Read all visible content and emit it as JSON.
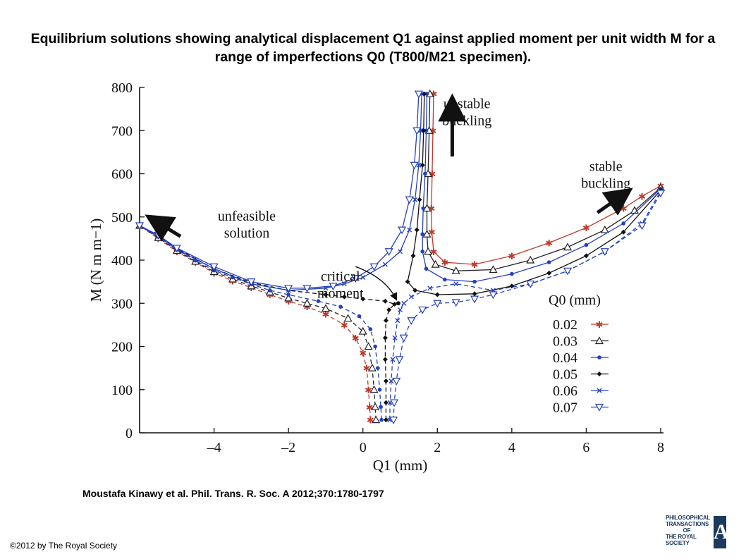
{
  "title": "Equilibrium solutions showing analytical displacement Q1 against applied moment per unit width M for a range of imperfections Q0 (T800/M21 specimen).",
  "citation": "Moustafa Kinawy et al. Phil. Trans. R. Soc. A 2012;370:1780-1797",
  "copyright": "©2012 by The Royal Society",
  "logo": {
    "line1": "PHILOSOPHICAL",
    "line2": "TRANSACTIONS",
    "line3": "OF",
    "line4": "THE ROYAL",
    "line5": "SOCIETY",
    "letter": "A"
  },
  "chart_data": {
    "type": "line",
    "title": "",
    "xlabel": "Q1 (mm)",
    "ylabel": "M (N m m−1)",
    "xlim": [
      -6,
      8
    ],
    "ylim": [
      0,
      800
    ],
    "x_ticks": [
      -4,
      -2,
      0,
      2,
      4,
      6,
      8
    ],
    "y_ticks": [
      0,
      100,
      200,
      300,
      400,
      500,
      600,
      700,
      800
    ],
    "x_tick_labels": [
      "–4",
      "–2",
      "0",
      "2",
      "4",
      "6",
      "8"
    ],
    "y_tick_labels": [
      "0",
      "100",
      "200",
      "300",
      "400",
      "500",
      "600",
      "700",
      "800"
    ],
    "grid": false,
    "legend": {
      "title": "Q0 (mm)",
      "placement": "bottom-right",
      "entries": [
        "0.02",
        "0.03",
        "0.04",
        "0.05",
        "0.06",
        "0.07"
      ]
    },
    "annotations": [
      {
        "text": "unstable buckling",
        "at": [
          2.7,
          755
        ]
      },
      {
        "text": "stable buckling",
        "at": [
          6.3,
          610
        ]
      },
      {
        "text": "unfeasible solution",
        "at": [
          -3.5,
          485
        ]
      },
      {
        "text": "critical moment",
        "at": [
          -0.7,
          345
        ]
      }
    ],
    "critical_moment_point": [
      0.95,
      300
    ],
    "series": [
      {
        "name": "0.02",
        "color": "#c0392b",
        "marker": "star",
        "unstable_branch": [
          [
            0.2,
            30
          ],
          [
            0.18,
            60
          ],
          [
            0.15,
            100
          ],
          [
            0.1,
            150
          ],
          [
            0.0,
            185
          ],
          [
            -0.2,
            220
          ],
          [
            -0.5,
            250
          ],
          [
            -1.0,
            275
          ],
          [
            -1.5,
            292
          ],
          [
            -2.0,
            305
          ],
          [
            -2.5,
            320
          ],
          [
            -3.0,
            336
          ],
          [
            -3.5,
            352
          ],
          [
            -4.0,
            370
          ],
          [
            -4.5,
            395
          ],
          [
            -5.0,
            420
          ],
          [
            -5.5,
            450
          ],
          [
            -6.0,
            480
          ]
        ],
        "upper_branch": [
          [
            1.9,
            785
          ],
          [
            1.88,
            700
          ],
          [
            1.86,
            600
          ],
          [
            1.84,
            520
          ],
          [
            1.85,
            465
          ],
          [
            1.9,
            420
          ],
          [
            2.2,
            395
          ],
          [
            3.0,
            390
          ],
          [
            4.0,
            410
          ],
          [
            5.0,
            440
          ],
          [
            6.0,
            475
          ],
          [
            7.0,
            520
          ],
          [
            7.5,
            548
          ],
          [
            8.0,
            572
          ]
        ]
      },
      {
        "name": "0.03",
        "color": "#222222",
        "marker": "triangle",
        "unstable_branch": [
          [
            0.35,
            30
          ],
          [
            0.33,
            60
          ],
          [
            0.3,
            100
          ],
          [
            0.25,
            150
          ],
          [
            0.15,
            200
          ],
          [
            0.0,
            235
          ],
          [
            -0.4,
            265
          ],
          [
            -1.0,
            288
          ],
          [
            -1.5,
            300
          ],
          [
            -2.0,
            312
          ],
          [
            -2.5,
            326
          ],
          [
            -3.0,
            340
          ],
          [
            -3.5,
            356
          ],
          [
            -4.0,
            373
          ],
          [
            -4.5,
            397
          ],
          [
            -5.0,
            422
          ],
          [
            -5.5,
            452
          ],
          [
            -6.0,
            480
          ]
        ],
        "upper_branch": [
          [
            1.8,
            785
          ],
          [
            1.78,
            700
          ],
          [
            1.75,
            600
          ],
          [
            1.72,
            520
          ],
          [
            1.72,
            460
          ],
          [
            1.75,
            420
          ],
          [
            1.95,
            390
          ],
          [
            2.5,
            375
          ],
          [
            3.5,
            378
          ],
          [
            4.5,
            400
          ],
          [
            5.5,
            430
          ],
          [
            6.5,
            470
          ],
          [
            7.3,
            515
          ],
          [
            8.0,
            568
          ]
        ]
      },
      {
        "name": "0.04",
        "color": "#2340c0",
        "marker": "dot",
        "unstable_branch": [
          [
            0.5,
            30
          ],
          [
            0.48,
            60
          ],
          [
            0.45,
            100
          ],
          [
            0.4,
            150
          ],
          [
            0.33,
            200
          ],
          [
            0.2,
            240
          ],
          [
            -0.1,
            270
          ],
          [
            -0.6,
            292
          ],
          [
            -1.2,
            305
          ],
          [
            -2.0,
            320
          ],
          [
            -2.5,
            330
          ],
          [
            -3.0,
            344
          ],
          [
            -3.5,
            360
          ],
          [
            -4.0,
            376
          ],
          [
            -4.5,
            399
          ],
          [
            -5.0,
            424
          ],
          [
            -5.5,
            454
          ],
          [
            -6.0,
            480
          ]
        ],
        "upper_branch": [
          [
            1.72,
            785
          ],
          [
            1.7,
            700
          ],
          [
            1.67,
            600
          ],
          [
            1.62,
            520
          ],
          [
            1.6,
            460
          ],
          [
            1.6,
            420
          ],
          [
            1.7,
            380
          ],
          [
            2.2,
            355
          ],
          [
            3.0,
            350
          ],
          [
            4.0,
            368
          ],
          [
            5.0,
            395
          ],
          [
            6.0,
            435
          ],
          [
            7.0,
            485
          ],
          [
            8.0,
            565
          ]
        ]
      },
      {
        "name": "0.05",
        "color": "#111111",
        "marker": "diamond",
        "unstable_branch": [
          [
            0.62,
            30
          ],
          [
            0.62,
            70
          ],
          [
            0.62,
            120
          ],
          [
            0.6,
            170
          ],
          [
            0.6,
            220
          ],
          [
            0.62,
            260
          ],
          [
            0.7,
            285
          ],
          [
            0.85,
            298
          ],
          [
            0.6,
            305
          ],
          [
            0.0,
            310
          ],
          [
            -0.5,
            315
          ],
          [
            -1.0,
            320
          ],
          [
            -2.0,
            330
          ],
          [
            -3.0,
            348
          ],
          [
            -4.0,
            380
          ],
          [
            -5.0,
            427
          ],
          [
            -5.5,
            456
          ],
          [
            -6.0,
            480
          ]
        ],
        "upper_branch": [
          [
            1.65,
            785
          ],
          [
            1.63,
            700
          ],
          [
            1.6,
            620
          ],
          [
            1.52,
            540
          ],
          [
            1.45,
            470
          ],
          [
            1.35,
            410
          ],
          [
            1.2,
            350
          ],
          [
            1.4,
            330
          ],
          [
            2.0,
            320
          ],
          [
            3.0,
            322
          ],
          [
            4.0,
            340
          ],
          [
            5.0,
            370
          ],
          [
            6.0,
            410
          ],
          [
            7.0,
            465
          ],
          [
            8.0,
            562
          ]
        ]
      },
      {
        "name": "0.06",
        "color": "#2340c0",
        "marker": "cross",
        "unstable_branch": [
          [
            0.72,
            30
          ],
          [
            0.73,
            70
          ],
          [
            0.76,
            120
          ],
          [
            0.8,
            170
          ],
          [
            0.86,
            220
          ],
          [
            0.93,
            260
          ],
          [
            1.0,
            285
          ],
          [
            1.1,
            300
          ],
          [
            1.3,
            315
          ],
          [
            1.8,
            335
          ],
          [
            2.5,
            345
          ],
          [
            3.5,
            330
          ],
          [
            4.5,
            345
          ],
          [
            5.5,
            375
          ],
          [
            6.5,
            420
          ],
          [
            7.5,
            485
          ],
          [
            8.0,
            560
          ]
        ],
        "upper_branch": [
          [
            1.58,
            785
          ],
          [
            1.55,
            700
          ],
          [
            1.5,
            620
          ],
          [
            1.4,
            540
          ],
          [
            1.25,
            470
          ],
          [
            1.0,
            420
          ],
          [
            0.6,
            390
          ],
          [
            0.0,
            360
          ],
          [
            -0.5,
            345
          ],
          [
            -1.0,
            335
          ],
          [
            -2.0,
            330
          ],
          [
            -3.0,
            345
          ],
          [
            -4.0,
            380
          ],
          [
            -5.0,
            425
          ],
          [
            -5.5,
            455
          ],
          [
            -6.0,
            480
          ]
        ]
      },
      {
        "name": "0.07",
        "color": "#2340c0",
        "marker": "triangle-down",
        "unstable_branch": [
          [
            0.82,
            30
          ],
          [
            0.84,
            70
          ],
          [
            0.9,
            120
          ],
          [
            0.98,
            170
          ],
          [
            1.1,
            220
          ],
          [
            1.3,
            260
          ],
          [
            1.6,
            285
          ],
          [
            2.0,
            300
          ],
          [
            2.5,
            302
          ],
          [
            3.0,
            310
          ],
          [
            3.5,
            320
          ],
          [
            4.5,
            345
          ],
          [
            5.5,
            375
          ],
          [
            6.5,
            420
          ],
          [
            7.5,
            480
          ],
          [
            8.0,
            555
          ]
        ],
        "upper_branch": [
          [
            1.5,
            785
          ],
          [
            1.45,
            700
          ],
          [
            1.38,
            620
          ],
          [
            1.25,
            540
          ],
          [
            1.05,
            470
          ],
          [
            0.7,
            420
          ],
          [
            0.3,
            385
          ],
          [
            -0.2,
            358
          ],
          [
            -0.8,
            340
          ],
          [
            -1.5,
            335
          ],
          [
            -2.0,
            335
          ],
          [
            -3.0,
            350
          ],
          [
            -4.0,
            385
          ],
          [
            -5.0,
            428
          ],
          [
            -5.5,
            458
          ],
          [
            -6.0,
            480
          ]
        ]
      }
    ]
  }
}
